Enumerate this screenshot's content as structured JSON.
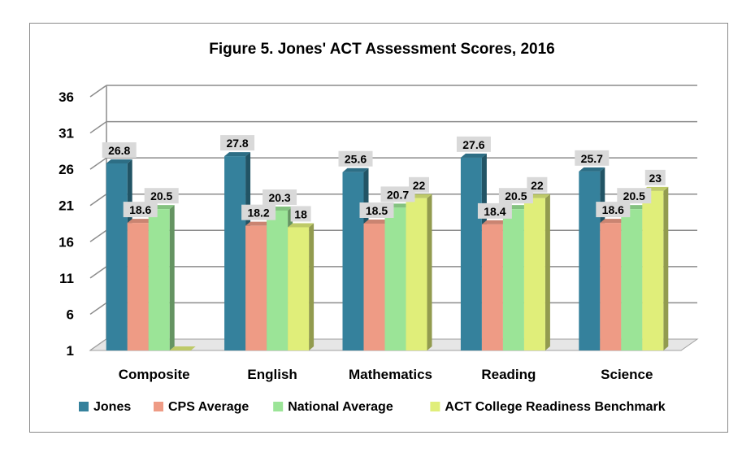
{
  "chart_data": {
    "type": "bar",
    "title": "Figure 5. Jones' ACT Assessment Scores, 2016",
    "categories": [
      "Composite",
      "English",
      "Mathematics",
      "Reading",
      "Science"
    ],
    "ylim": [
      1,
      36
    ],
    "yticks": [
      1,
      6,
      11,
      16,
      21,
      26,
      31,
      36
    ],
    "grid": true,
    "legend_position": "bottom",
    "series": [
      {
        "name": "Jones",
        "color": "#35819c",
        "values": [
          26.8,
          27.8,
          25.6,
          27.6,
          25.7
        ],
        "labels": [
          "26.8",
          "27.8",
          "25.6",
          "27.6",
          "25.7"
        ]
      },
      {
        "name": "CPS Average",
        "color": "#ee9b85",
        "values": [
          18.6,
          18.2,
          18.5,
          18.4,
          18.6
        ],
        "labels": [
          "18.6",
          "18.2",
          "18.5",
          "18.4",
          "18.6"
        ]
      },
      {
        "name": "National Average",
        "color": "#9be497",
        "values": [
          20.5,
          20.3,
          20.7,
          20.5,
          20.5
        ],
        "labels": [
          "20.5",
          "20.3",
          "20.7",
          "20.5",
          "20.5"
        ]
      },
      {
        "name": "ACT College Readiness Benchmark",
        "color": "#e0ee7a",
        "values": [
          null,
          18,
          22,
          22,
          23
        ],
        "labels": [
          null,
          "18",
          "22",
          "22",
          "23"
        ]
      }
    ]
  }
}
